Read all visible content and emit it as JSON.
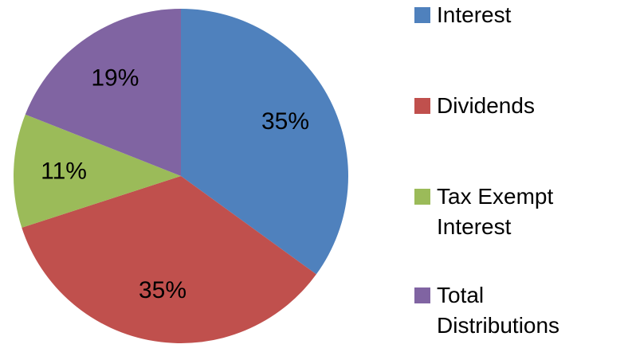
{
  "chart_data": {
    "type": "pie",
    "categories": [
      "Interest",
      "Dividends",
      "Tax Exempt Interest",
      "Total Distributions"
    ],
    "values": [
      35,
      35,
      11,
      19
    ],
    "value_labels": [
      "35%",
      "35%",
      "11%",
      "19%"
    ],
    "colors": [
      "#4f81bd",
      "#c0504d",
      "#9bbb59",
      "#8064a2"
    ],
    "legend": "right"
  }
}
